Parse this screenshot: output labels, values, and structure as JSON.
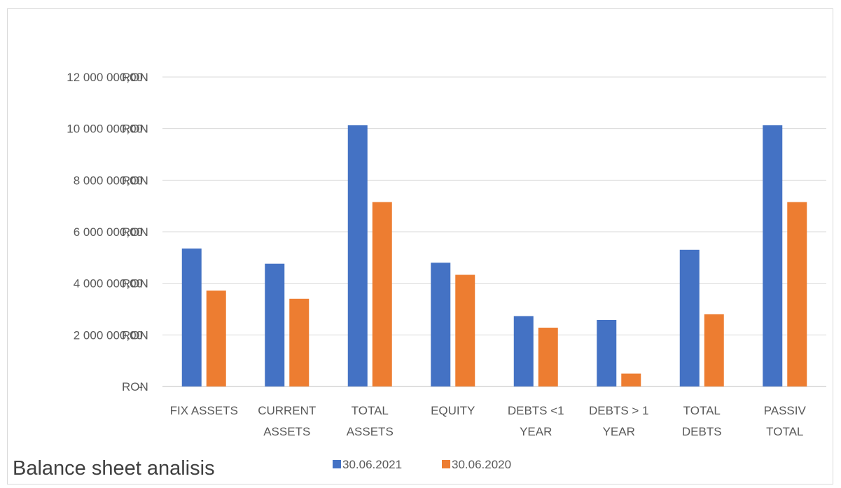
{
  "chart_data": {
    "type": "bar",
    "title": "Balance sheet analisis",
    "xlabel": "",
    "ylabel": "",
    "categories": [
      [
        "FIX ASSETS"
      ],
      [
        "CURRENT",
        "ASSETS"
      ],
      [
        "TOTAL",
        "ASSETS"
      ],
      [
        "EQUITY"
      ],
      [
        "DEBTS <1",
        "YEAR"
      ],
      [
        "DEBTS > 1",
        "YEAR"
      ],
      [
        "TOTAL",
        "DEBTS"
      ],
      [
        "PASSIV",
        "TOTAL"
      ]
    ],
    "series": [
      {
        "name": "30.06.2021",
        "color": "#4472C4",
        "values": [
          5350000,
          4760000,
          10130000,
          4800000,
          2730000,
          2580000,
          5300000,
          10130000
        ]
      },
      {
        "name": "30.06.2020",
        "color": "#ED7D31",
        "values": [
          3720000,
          3400000,
          7150000,
          4330000,
          2280000,
          500000,
          2800000,
          7150000
        ]
      }
    ],
    "ylim": [
      0,
      12000000
    ],
    "yticks": [
      {
        "value": 0,
        "label": "-",
        "unit": "RON"
      },
      {
        "value": 2000000,
        "label": "2 000 000,00",
        "unit": "RON"
      },
      {
        "value": 4000000,
        "label": "4 000 000,00",
        "unit": "RON"
      },
      {
        "value": 6000000,
        "label": "6 000 000,00",
        "unit": "RON"
      },
      {
        "value": 8000000,
        "label": "8 000 000,00",
        "unit": "RON"
      },
      {
        "value": 10000000,
        "label": "10 000 000,00",
        "unit": "RON"
      },
      {
        "value": 12000000,
        "label": "12 000 000,00",
        "unit": "RON"
      }
    ],
    "grid": true,
    "legend_position": "bottom"
  }
}
